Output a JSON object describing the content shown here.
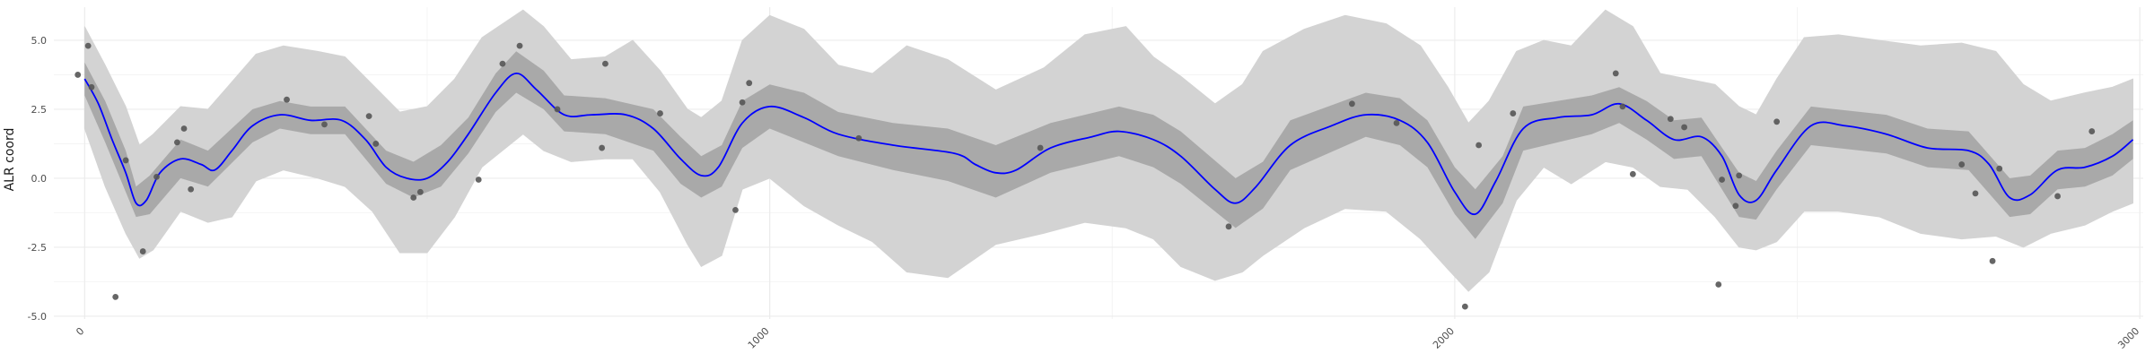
{
  "chart_data": {
    "type": "line",
    "title": "",
    "xlabel": "",
    "ylabel": "ALR coord",
    "xlim": [
      -45,
      3005
    ],
    "ylim": [
      -5.1,
      6.2
    ],
    "grid": true,
    "x_ticks": [
      0,
      1000,
      2000,
      3000
    ],
    "x_tick_labels": [
      "0",
      "1000",
      "2000",
      "3000"
    ],
    "y_ticks": [
      -5.0,
      -2.5,
      0.0,
      2.5,
      5.0
    ],
    "y_tick_labels": [
      "-5.0",
      "-2.5",
      "0.0",
      "2.5",
      "5.0"
    ],
    "colors": {
      "line": "#0000ff",
      "inner_band": "#a9a9a9",
      "outer_band": "#d3d3d3",
      "points": "#555555",
      "grid": "#ececec",
      "text": "#4d4d4d",
      "axis_title": "#1a1a1a"
    },
    "mean_line": [
      [
        0,
        3.6
      ],
      [
        20,
        2.7
      ],
      [
        40,
        1.4
      ],
      [
        60,
        0.2
      ],
      [
        75,
        -0.9
      ],
      [
        90,
        -0.8
      ],
      [
        110,
        0.2
      ],
      [
        140,
        0.7
      ],
      [
        170,
        0.5
      ],
      [
        190,
        0.3
      ],
      [
        215,
        1.0
      ],
      [
        245,
        1.9
      ],
      [
        285,
        2.3
      ],
      [
        330,
        2.1
      ],
      [
        375,
        2.1
      ],
      [
        410,
        1.4
      ],
      [
        440,
        0.4
      ],
      [
        470,
        0.0
      ],
      [
        500,
        0.0
      ],
      [
        530,
        0.6
      ],
      [
        560,
        1.6
      ],
      [
        600,
        3.1
      ],
      [
        630,
        3.8
      ],
      [
        660,
        3.2
      ],
      [
        700,
        2.3
      ],
      [
        740,
        2.3
      ],
      [
        790,
        2.3
      ],
      [
        830,
        1.8
      ],
      [
        870,
        0.7
      ],
      [
        900,
        0.1
      ],
      [
        925,
        0.4
      ],
      [
        960,
        2.0
      ],
      [
        1000,
        2.6
      ],
      [
        1050,
        2.2
      ],
      [
        1100,
        1.6
      ],
      [
        1180,
        1.2
      ],
      [
        1270,
        0.9
      ],
      [
        1300,
        0.5
      ],
      [
        1330,
        0.2
      ],
      [
        1360,
        0.3
      ],
      [
        1410,
        1.1
      ],
      [
        1470,
        1.5
      ],
      [
        1510,
        1.7
      ],
      [
        1560,
        1.4
      ],
      [
        1600,
        0.8
      ],
      [
        1650,
        -0.4
      ],
      [
        1680,
        -0.9
      ],
      [
        1710,
        -0.3
      ],
      [
        1760,
        1.2
      ],
      [
        1820,
        1.9
      ],
      [
        1870,
        2.3
      ],
      [
        1920,
        2.1
      ],
      [
        1960,
        1.3
      ],
      [
        2000,
        -0.5
      ],
      [
        2030,
        -1.3
      ],
      [
        2060,
        -0.1
      ],
      [
        2100,
        1.8
      ],
      [
        2150,
        2.2
      ],
      [
        2200,
        2.3
      ],
      [
        2240,
        2.7
      ],
      [
        2280,
        2.1
      ],
      [
        2320,
        1.4
      ],
      [
        2360,
        1.5
      ],
      [
        2390,
        0.8
      ],
      [
        2415,
        -0.6
      ],
      [
        2440,
        -0.8
      ],
      [
        2470,
        0.3
      ],
      [
        2520,
        1.9
      ],
      [
        2570,
        1.9
      ],
      [
        2630,
        1.6
      ],
      [
        2690,
        1.1
      ],
      [
        2750,
        1.0
      ],
      [
        2780,
        0.5
      ],
      [
        2810,
        -0.7
      ],
      [
        2840,
        -0.6
      ],
      [
        2880,
        0.3
      ],
      [
        2920,
        0.4
      ],
      [
        2960,
        0.8
      ],
      [
        2990,
        1.4
      ]
    ],
    "inner_band": [
      [
        0,
        3.0,
        4.2
      ],
      [
        30,
        1.3,
        2.8
      ],
      [
        60,
        -0.5,
        1.0
      ],
      [
        75,
        -1.4,
        -0.3
      ],
      [
        95,
        -1.3,
        0.1
      ],
      [
        140,
        0.0,
        1.4
      ],
      [
        180,
        -0.3,
        1.0
      ],
      [
        245,
        1.3,
        2.5
      ],
      [
        285,
        1.8,
        2.8
      ],
      [
        330,
        1.6,
        2.6
      ],
      [
        380,
        1.6,
        2.6
      ],
      [
        440,
        -0.2,
        1.0
      ],
      [
        480,
        -0.7,
        0.6
      ],
      [
        520,
        -0.3,
        1.2
      ],
      [
        560,
        0.9,
        2.2
      ],
      [
        600,
        2.4,
        3.8
      ],
      [
        630,
        3.1,
        4.6
      ],
      [
        670,
        2.5,
        3.9
      ],
      [
        700,
        1.7,
        3.0
      ],
      [
        760,
        1.6,
        2.9
      ],
      [
        830,
        1.0,
        2.5
      ],
      [
        870,
        -0.2,
        1.5
      ],
      [
        900,
        -0.7,
        0.8
      ],
      [
        930,
        -0.3,
        1.2
      ],
      [
        960,
        1.1,
        2.8
      ],
      [
        1000,
        1.8,
        3.4
      ],
      [
        1050,
        1.3,
        3.1
      ],
      [
        1100,
        0.8,
        2.4
      ],
      [
        1180,
        0.3,
        2.0
      ],
      [
        1260,
        -0.1,
        1.8
      ],
      [
        1330,
        -0.7,
        1.2
      ],
      [
        1410,
        0.2,
        2.0
      ],
      [
        1510,
        0.8,
        2.6
      ],
      [
        1560,
        0.4,
        2.3
      ],
      [
        1600,
        -0.2,
        1.7
      ],
      [
        1680,
        -1.8,
        0.0
      ],
      [
        1720,
        -1.1,
        0.6
      ],
      [
        1760,
        0.3,
        2.1
      ],
      [
        1870,
        1.5,
        3.1
      ],
      [
        1920,
        1.2,
        2.9
      ],
      [
        1960,
        0.4,
        2.1
      ],
      [
        2000,
        -1.3,
        0.4
      ],
      [
        2030,
        -2.2,
        -0.4
      ],
      [
        2070,
        -0.9,
        0.8
      ],
      [
        2100,
        1.0,
        2.6
      ],
      [
        2200,
        1.6,
        3.0
      ],
      [
        2240,
        2.0,
        3.3
      ],
      [
        2280,
        1.4,
        2.8
      ],
      [
        2320,
        0.7,
        2.1
      ],
      [
        2360,
        0.8,
        2.2
      ],
      [
        2415,
        -1.4,
        0.2
      ],
      [
        2440,
        -1.5,
        -0.1
      ],
      [
        2470,
        -0.4,
        1.0
      ],
      [
        2520,
        1.2,
        2.6
      ],
      [
        2630,
        0.9,
        2.3
      ],
      [
        2690,
        0.4,
        1.8
      ],
      [
        2750,
        0.3,
        1.7
      ],
      [
        2810,
        -1.4,
        0.0
      ],
      [
        2840,
        -1.3,
        0.1
      ],
      [
        2880,
        -0.4,
        1.0
      ],
      [
        2920,
        -0.3,
        1.1
      ],
      [
        2960,
        0.1,
        1.6
      ],
      [
        2990,
        0.7,
        2.1
      ]
    ],
    "outer_band": [
      [
        0,
        1.8,
        5.5
      ],
      [
        30,
        -0.3,
        4.1
      ],
      [
        60,
        -2.0,
        2.6
      ],
      [
        80,
        -2.9,
        1.2
      ],
      [
        100,
        -2.6,
        1.6
      ],
      [
        140,
        -1.2,
        2.6
      ],
      [
        180,
        -1.6,
        2.5
      ],
      [
        215,
        -1.4,
        3.5
      ],
      [
        250,
        -0.1,
        4.5
      ],
      [
        290,
        0.3,
        4.8
      ],
      [
        340,
        0.0,
        4.6
      ],
      [
        380,
        -0.3,
        4.4
      ],
      [
        420,
        -1.2,
        3.4
      ],
      [
        460,
        -2.7,
        2.4
      ],
      [
        500,
        -2.7,
        2.6
      ],
      [
        540,
        -1.4,
        3.6
      ],
      [
        580,
        0.4,
        5.1
      ],
      [
        640,
        1.6,
        6.1
      ],
      [
        670,
        1.0,
        5.5
      ],
      [
        710,
        0.6,
        4.3
      ],
      [
        760,
        0.7,
        4.4
      ],
      [
        800,
        0.7,
        5.0
      ],
      [
        840,
        -0.5,
        3.9
      ],
      [
        880,
        -2.4,
        2.5
      ],
      [
        900,
        -3.2,
        2.2
      ],
      [
        930,
        -2.8,
        2.8
      ],
      [
        960,
        -0.4,
        5.0
      ],
      [
        1000,
        0.0,
        5.9
      ],
      [
        1050,
        -1.0,
        5.4
      ],
      [
        1100,
        -1.7,
        4.1
      ],
      [
        1150,
        -2.3,
        3.8
      ],
      [
        1200,
        -3.4,
        4.8
      ],
      [
        1260,
        -3.6,
        4.3
      ],
      [
        1330,
        -2.4,
        3.2
      ],
      [
        1400,
        -2.0,
        4.0
      ],
      [
        1460,
        -1.6,
        5.2
      ],
      [
        1520,
        -1.8,
        5.5
      ],
      [
        1560,
        -2.2,
        4.4
      ],
      [
        1600,
        -3.2,
        3.7
      ],
      [
        1650,
        -3.7,
        2.7
      ],
      [
        1690,
        -3.4,
        3.4
      ],
      [
        1720,
        -2.8,
        4.6
      ],
      [
        1780,
        -1.8,
        5.4
      ],
      [
        1840,
        -1.1,
        5.9
      ],
      [
        1900,
        -1.2,
        5.6
      ],
      [
        1950,
        -2.2,
        4.8
      ],
      [
        1990,
        -3.3,
        3.3
      ],
      [
        2020,
        -4.1,
        2.0
      ],
      [
        2050,
        -3.4,
        2.8
      ],
      [
        2090,
        -0.8,
        4.6
      ],
      [
        2130,
        0.4,
        5.0
      ],
      [
        2170,
        -0.2,
        4.8
      ],
      [
        2220,
        0.6,
        6.1
      ],
      [
        2260,
        0.4,
        5.5
      ],
      [
        2300,
        -0.3,
        3.8
      ],
      [
        2340,
        -0.4,
        3.6
      ],
      [
        2380,
        -1.4,
        3.4
      ],
      [
        2415,
        -2.5,
        2.6
      ],
      [
        2440,
        -2.6,
        2.3
      ],
      [
        2470,
        -2.3,
        3.6
      ],
      [
        2510,
        -1.2,
        5.1
      ],
      [
        2560,
        -1.2,
        5.2
      ],
      [
        2620,
        -1.4,
        5.0
      ],
      [
        2680,
        -2.0,
        4.8
      ],
      [
        2740,
        -2.2,
        4.9
      ],
      [
        2790,
        -2.1,
        4.6
      ],
      [
        2830,
        -2.5,
        3.4
      ],
      [
        2870,
        -2.0,
        2.8
      ],
      [
        2920,
        -1.7,
        3.1
      ],
      [
        2960,
        -1.2,
        3.3
      ],
      [
        2990,
        -0.9,
        3.6
      ]
    ],
    "observations": [
      [
        -10,
        3.75
      ],
      [
        5,
        4.8
      ],
      [
        10,
        3.3
      ],
      [
        45,
        -4.3
      ],
      [
        60,
        0.65
      ],
      [
        85,
        -2.65
      ],
      [
        105,
        0.05
      ],
      [
        135,
        1.3
      ],
      [
        145,
        1.8
      ],
      [
        155,
        -0.4
      ],
      [
        295,
        2.85
      ],
      [
        350,
        1.95
      ],
      [
        415,
        2.25
      ],
      [
        425,
        1.25
      ],
      [
        480,
        -0.7
      ],
      [
        490,
        -0.5
      ],
      [
        575,
        -0.05
      ],
      [
        610,
        4.15
      ],
      [
        635,
        4.8
      ],
      [
        690,
        2.5
      ],
      [
        755,
        1.1
      ],
      [
        760,
        4.15
      ],
      [
        840,
        2.35
      ],
      [
        950,
        -1.15
      ],
      [
        960,
        2.75
      ],
      [
        970,
        3.45
      ],
      [
        1130,
        1.45
      ],
      [
        1395,
        1.1
      ],
      [
        1670,
        -1.75
      ],
      [
        1850,
        2.7
      ],
      [
        1915,
        2.0
      ],
      [
        2015,
        -4.65
      ],
      [
        2035,
        1.2
      ],
      [
        2085,
        2.35
      ],
      [
        2235,
        3.8
      ],
      [
        2245,
        2.6
      ],
      [
        2260,
        0.15
      ],
      [
        2315,
        2.15
      ],
      [
        2335,
        1.85
      ],
      [
        2385,
        -3.85
      ],
      [
        2390,
        -0.05
      ],
      [
        2410,
        -1.0
      ],
      [
        2415,
        0.1
      ],
      [
        2470,
        2.05
      ],
      [
        2740,
        0.5
      ],
      [
        2760,
        -0.55
      ],
      [
        2785,
        -3.0
      ],
      [
        2795,
        0.35
      ],
      [
        2880,
        -0.65
      ],
      [
        2930,
        1.7
      ]
    ]
  }
}
